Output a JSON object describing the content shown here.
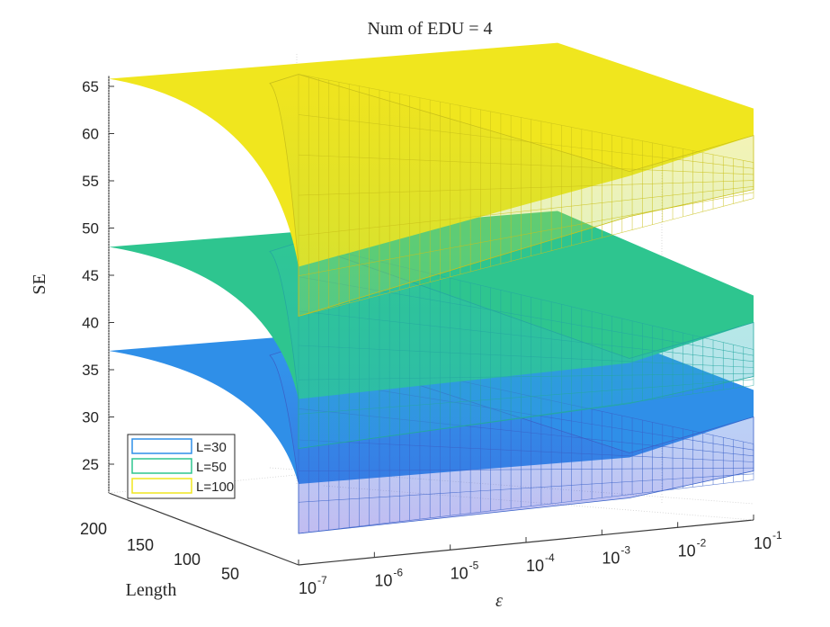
{
  "chart_data": {
    "type": "surface",
    "title": "Num of EDU = 4",
    "xlabel": "ε",
    "ylabel": "Length",
    "zlabel": "SE",
    "grid": true,
    "legend_position": "bottom-left",
    "x_scale": "log",
    "x_range": [
      1e-07,
      0.1
    ],
    "x_tick_base": "10",
    "x_ticks": [
      {
        "value": 1e-07,
        "exp": "-7"
      },
      {
        "value": 1e-06,
        "exp": "-6"
      },
      {
        "value": 1e-05,
        "exp": "-5"
      },
      {
        "value": 0.0001,
        "exp": "-4"
      },
      {
        "value": 0.001,
        "exp": "-3"
      },
      {
        "value": 0.01,
        "exp": "-2"
      },
      {
        "value": 0.1,
        "exp": "-1"
      }
    ],
    "y_ticks": [
      "200",
      "150",
      "100",
      "50"
    ],
    "z_ticks": [
      "25",
      "30",
      "35",
      "40",
      "45",
      "50",
      "55",
      "60",
      "65"
    ],
    "series": [
      {
        "name": "L=30",
        "color": "#2F8FE8",
        "edge_far_small_eps": 37,
        "edge_far_large_eps": 30,
        "edge_near_mid_eps": 21
      },
      {
        "name": "L=50",
        "color": "#2EC58F",
        "edge_far_small_eps": 48,
        "edge_far_large_eps": 40,
        "edge_near_mid_eps": 30
      },
      {
        "name": "L=100",
        "color": "#F0E61E",
        "edge_far_small_eps": 65.8,
        "edge_far_large_eps": 59.8,
        "edge_near_mid_eps": 44
      }
    ]
  }
}
